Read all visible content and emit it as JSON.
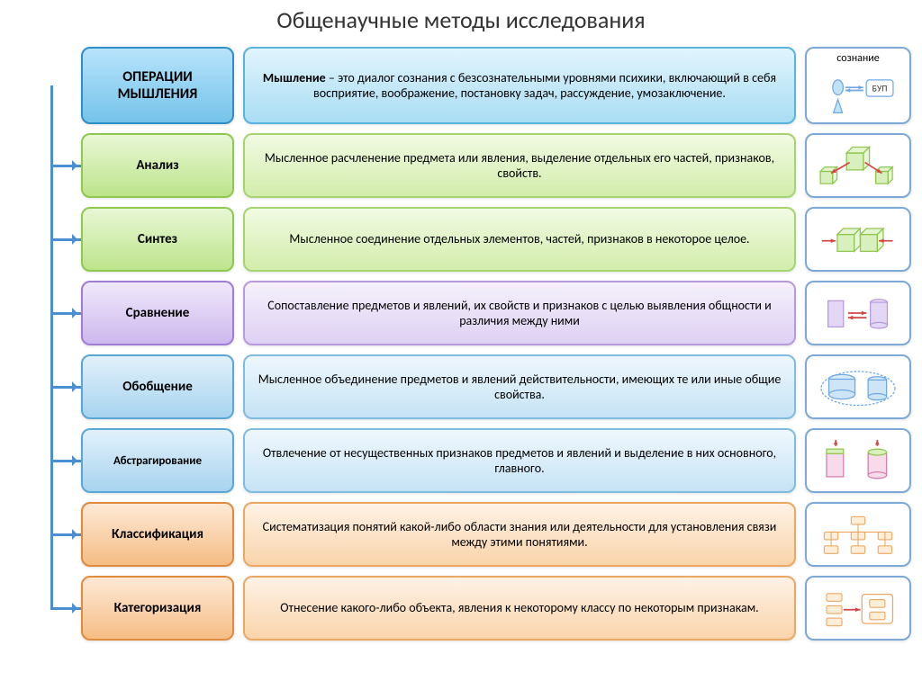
{
  "title": "Общенаучные методы исследования",
  "header": {
    "label": "ОПЕРАЦИИ МЫШЛЕНИЯ",
    "definition_bold": "Мышление",
    "definition": " – это диалог сознания с безсознательными уровнями психики, включающий в себя восприятие, воображение, постановку задач, рассуждение, умозаключение.",
    "side_label": "сознание",
    "side_bup": "БУП",
    "label_bg_top": "#b7e3fb",
    "label_bg_bot": "#75c3ea",
    "label_border": "#2d8fc7",
    "desc_bg_top": "#e1f4fd",
    "desc_bg_bot": "#a9ddf3",
    "desc_border": "#57b4df"
  },
  "rows": [
    {
      "label": "Анализ",
      "desc": "Мысленное расчленение предмета или явления, выделение отдельных его частей, признаков, свойств.",
      "label_bg_top": "#e8f7d5",
      "label_bg_bot": "#bde48b",
      "label_border": "#8fc84f",
      "desc_bg_top": "#f1fae3",
      "desc_bg_bot": "#d3edab",
      "desc_border": "#a6d46f",
      "icon": "analysis"
    },
    {
      "label": "Синтез",
      "desc": "Мысленное соединение отдельных элементов, частей, признаков в некоторое целое.",
      "label_bg_top": "#e8f7d5",
      "label_bg_bot": "#bde48b",
      "label_border": "#8fc84f",
      "desc_bg_top": "#f1fae3",
      "desc_bg_bot": "#d3edab",
      "desc_border": "#a6d46f",
      "icon": "synthesis"
    },
    {
      "label": "Сравнение",
      "desc": "Сопоставление предметов и явлений, их свойств и признаков с целью выявления общности и различия между ними",
      "label_bg_top": "#efe8fa",
      "label_bg_bot": "#cdb8ee",
      "label_border": "#9f7cd6",
      "desc_bg_top": "#f5f1fb",
      "desc_bg_bot": "#ded0f3",
      "desc_border": "#b79add",
      "icon": "compare"
    },
    {
      "label": "Обобщение",
      "desc": "Мысленное объединение предметов и явлений действительности, имеющих те или иные общие свойства.",
      "label_bg_top": "#e2f1fb",
      "label_bg_bot": "#a7d3ef",
      "label_border": "#5aa7d7",
      "desc_bg_top": "#eef7fd",
      "desc_bg_bot": "#c6e3f5",
      "desc_border": "#7fbde0",
      "icon": "general"
    },
    {
      "label": "Абстрагирование",
      "desc": "Отвлечение от несущественных признаков предметов и явлений и выделение в них основного, главного.",
      "label_bg_top": "#e2f1fb",
      "label_bg_bot": "#a7d3ef",
      "label_border": "#5aa7d7",
      "desc_bg_top": "#eef7fd",
      "desc_bg_bot": "#c6e3f5",
      "desc_border": "#7fbde0",
      "icon": "abstract"
    },
    {
      "label": "Классификация",
      "desc": "Систематизация понятий какой-либо области знания или деятельности для установления связи между этими понятиями.",
      "label_bg_top": "#fde9d6",
      "label_bg_bot": "#f5bd84",
      "label_border": "#e08a3e",
      "desc_bg_top": "#fef2e6",
      "desc_bg_bot": "#f9d4aa",
      "desc_border": "#eaa862",
      "icon": "classify"
    },
    {
      "label": "Категоризация",
      "desc": "Отнесение какого-либо объекта, явления к некоторому классу по некоторым признакам.",
      "label_bg_top": "#fde9d6",
      "label_bg_bot": "#f5bd84",
      "label_border": "#e08a3e",
      "desc_bg_top": "#fef2e6",
      "desc_bg_bot": "#f9d4aa",
      "desc_border": "#eaa862",
      "icon": "categorize"
    }
  ],
  "connector_color": "#4a8fd4",
  "icon_border": "#7da9d9",
  "row_height_header": 86,
  "row_height_mid": 62,
  "row_height_large": 72
}
